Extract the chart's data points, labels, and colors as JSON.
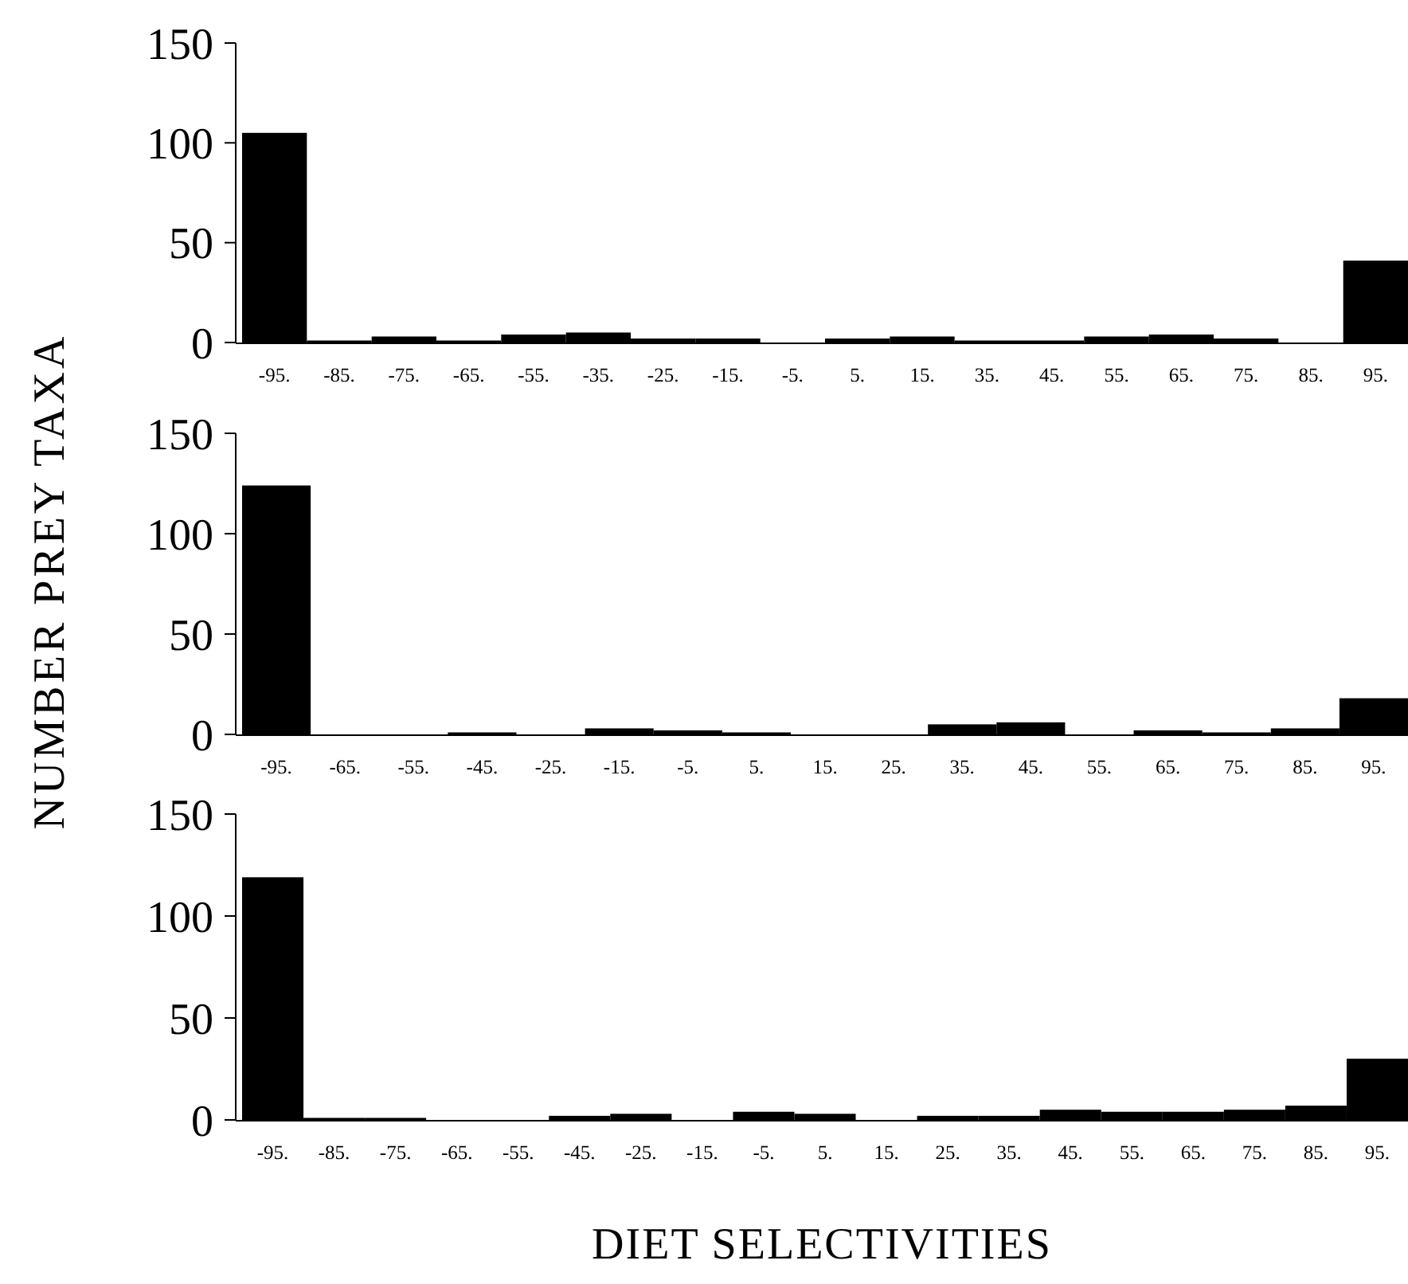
{
  "chart_data": [
    {
      "type": "bar",
      "categories": [
        "-95.",
        "-85.",
        "-75.",
        "-65.",
        "-55.",
        "-35.",
        "-25.",
        "-15.",
        "-5.",
        "5.",
        "15.",
        "35.",
        "45.",
        "55.",
        "65.",
        "75.",
        "85.",
        "95."
      ],
      "values": [
        105,
        1,
        3,
        1,
        4,
        5,
        2,
        2,
        0,
        2,
        3,
        1,
        1,
        3,
        4,
        2,
        0,
        41
      ],
      "color": "#000000",
      "ylim": [
        0,
        150
      ],
      "yticks": [
        0,
        50,
        100,
        150
      ],
      "grid": false
    },
    {
      "type": "bar",
      "ylabel": "NUMBER PREY TAXA",
      "categories": [
        "-95.",
        "-65.",
        "-55.",
        "-45.",
        "-25.",
        "-15.",
        "-5.",
        "5.",
        "15.",
        "25.",
        "35.",
        "45.",
        "55.",
        "65.",
        "75.",
        "85.",
        "95."
      ],
      "values": [
        124,
        0,
        0,
        1,
        0,
        3,
        2,
        1,
        0,
        0,
        5,
        6,
        0,
        2,
        1,
        3,
        18
      ],
      "color": "#000000",
      "ylim": [
        0,
        150
      ],
      "yticks": [
        0,
        50,
        100,
        150
      ],
      "grid": false
    },
    {
      "type": "bar",
      "xlabel": "DIET SELECTIVITIES",
      "categories": [
        "-95.",
        "-85.",
        "-75.",
        "-65.",
        "-55.",
        "-45.",
        "-25.",
        "-15.",
        "-5.",
        "5.",
        "15.",
        "25.",
        "35.",
        "45.",
        "55.",
        "65.",
        "75.",
        "85.",
        "95."
      ],
      "values": [
        119,
        1,
        1,
        0,
        0,
        2,
        3,
        0,
        4,
        3,
        0,
        2,
        2,
        5,
        4,
        4,
        5,
        7,
        30
      ],
      "color": "#000000",
      "ylim": [
        0,
        150
      ],
      "yticks": [
        0,
        50,
        100,
        150
      ],
      "grid": false
    }
  ]
}
